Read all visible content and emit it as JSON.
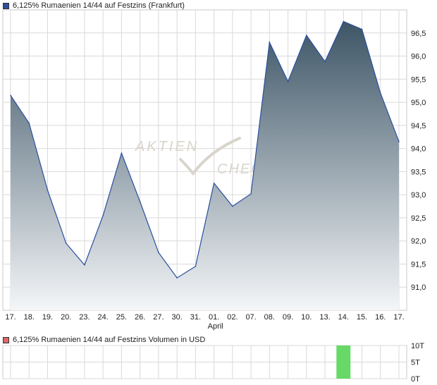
{
  "price_legend": {
    "label": "6,125% Rumaenien 14/44 auf Festzins (Frankfurt)",
    "color": "#2b4f9e"
  },
  "volume_legend": {
    "label": "6,125% Rumaenien 14/44 auf Festzins Volumen in USD",
    "color": "#e06666"
  },
  "watermark": {
    "line1": "AKTIEN",
    "line2": "CHECK"
  },
  "colors": {
    "line": "#2b4f9e",
    "area_top": "#3d5566",
    "area_bottom": "#f4f6f8",
    "grid": "#d9d9d9",
    "volume_bar": "#66d966"
  },
  "chart_data": [
    {
      "type": "area",
      "title": "",
      "x": [
        "17.",
        "18.",
        "19.",
        "20.",
        "23.",
        "24.",
        "25.",
        "26.",
        "27.",
        "30.",
        "31.",
        "01.",
        "02.",
        "07.",
        "08.",
        "09.",
        "10.",
        "13.",
        "14.",
        "15.",
        "16.",
        "17."
      ],
      "x_sublabels": {
        "01.": "April"
      },
      "series": [
        {
          "values": [
            95.15,
            94.55,
            93.1,
            91.95,
            91.48,
            92.55,
            93.9,
            92.85,
            91.75,
            91.2,
            91.45,
            93.25,
            92.75,
            93.02,
            96.3,
            95.45,
            96.45,
            95.88,
            96.75,
            96.58,
            95.2,
            94.15
          ]
        }
      ],
      "yticks": [
        91.0,
        91.5,
        92.0,
        92.5,
        93.0,
        93.5,
        94.0,
        94.5,
        95.0,
        95.5,
        96.0,
        96.5
      ],
      "ytick_labels": [
        "91,0",
        "91,5",
        "92,0",
        "92,5",
        "93,0",
        "93,5",
        "94,0",
        "94,5",
        "95,0",
        "95,5",
        "96,0",
        "96,5"
      ],
      "ylim": [
        90.5,
        97.0
      ],
      "grid": true,
      "y_axis_side": "right"
    },
    {
      "type": "bar",
      "title": "",
      "x": [
        "17.",
        "18.",
        "19.",
        "20.",
        "23.",
        "24.",
        "25.",
        "26.",
        "27.",
        "30.",
        "31.",
        "01.",
        "02.",
        "07.",
        "08.",
        "09.",
        "10.",
        "13.",
        "14.",
        "15.",
        "16.",
        "17."
      ],
      "values": [
        0,
        0,
        0,
        0,
        0,
        0,
        0,
        0,
        0,
        0,
        0,
        0,
        0,
        0,
        0,
        0,
        0,
        0,
        10,
        0,
        0,
        0
      ],
      "yticks": [
        0,
        5,
        10
      ],
      "ytick_labels": [
        "0T",
        "5T",
        "10T"
      ],
      "ylim": [
        0,
        10
      ],
      "grid": true,
      "y_axis_side": "right"
    }
  ]
}
